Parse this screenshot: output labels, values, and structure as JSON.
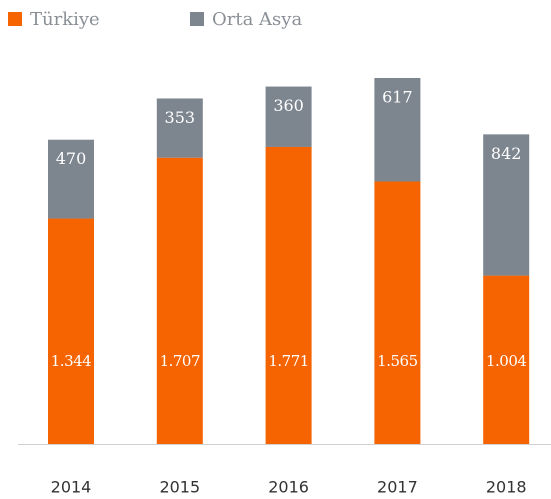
{
  "chart_data": {
    "type": "stacked_bar",
    "categories": [
      "2014",
      "2015",
      "2016",
      "2017",
      "2018"
    ],
    "series": [
      {
        "name": "Türkiye",
        "color": "#f56400",
        "values": [
          1344,
          1707,
          1771,
          1565,
          1004
        ],
        "value_labels": [
          "1.344",
          "1.707",
          "1.771",
          "1.565",
          "1.004"
        ]
      },
      {
        "name": "Orta Asya",
        "color": "#7d858f",
        "values": [
          470,
          353,
          360,
          617,
          842
        ]
      }
    ],
    "legend": "top-left"
  }
}
